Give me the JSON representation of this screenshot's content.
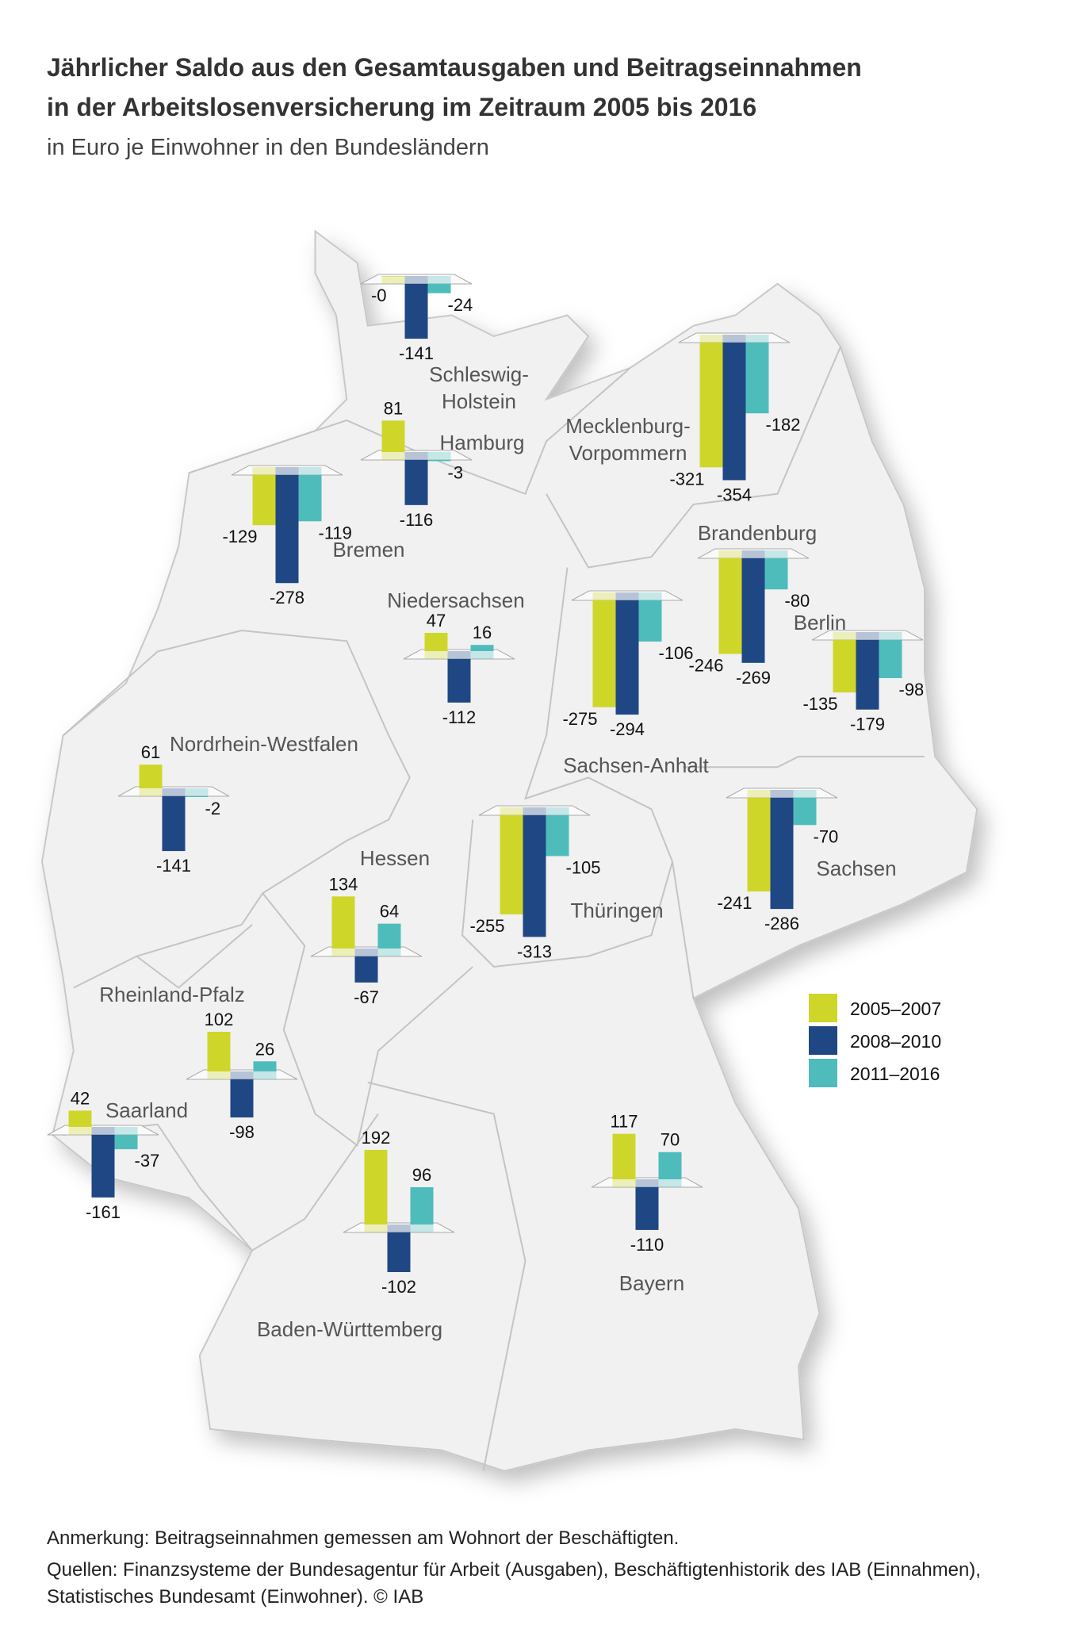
{
  "title_line1": "Jährlicher Saldo aus den Gesamtausgaben und Beitragseinnahmen",
  "title_line2": "in der Arbeitslosenversicherung im Zeitraum 2005 bis 2016",
  "subtitle": "in Euro je Einwohner in den Bundesländern",
  "footer": {
    "note": "Anmerkung: Beitragseinnahmen gemessen am Wohnort der Beschäftigten.",
    "sources_line1": "Quellen: Finanzsysteme der Bundesagentur für Arbeit (Ausgaben), Beschäftigtenhistorik des IAB (Einnahmen),",
    "sources_line2": "Statistisches Bundesamt (Einwohner).  © IAB"
  },
  "chart_data": {
    "type": "bar",
    "title": "Jährlicher Saldo aus den Gesamtausgaben und Beitragseinnahmen in der Arbeitslosenversicherung im Zeitraum 2005 bis 2016",
    "ylabel": "in Euro je Einwohner",
    "legend_position": "right",
    "series": [
      {
        "name": "2005–2007",
        "color": "#cfd62a"
      },
      {
        "name": "2008–2010",
        "color": "#1f4784"
      },
      {
        "name": "2011–2016",
        "color": "#4fbcbc"
      }
    ],
    "states": [
      {
        "name": [
          "Schleswig-",
          "Holstein"
        ],
        "values": [
          0,
          -141,
          -24
        ],
        "labels": [
          "-0",
          "-141",
          "-24"
        ]
      },
      {
        "name": [
          "Hamburg"
        ],
        "values": [
          81,
          -116,
          -3
        ],
        "labels": [
          "81",
          "-116",
          "-3"
        ]
      },
      {
        "name": [
          "Bremen"
        ],
        "values": [
          -129,
          -278,
          -119
        ],
        "labels": [
          "-129",
          "-278",
          "-119"
        ]
      },
      {
        "name": [
          "Niedersachsen"
        ],
        "values": [
          47,
          -112,
          16
        ],
        "labels": [
          "47",
          "-112",
          "16"
        ]
      },
      {
        "name": [
          "Mecklenburg-",
          "Vorpommern"
        ],
        "values": [
          -321,
          -354,
          -182
        ],
        "labels": [
          "-321",
          "-354",
          "-182"
        ]
      },
      {
        "name": [
          "Brandenburg"
        ],
        "values": [
          -246,
          -269,
          -80
        ],
        "labels": [
          "-246",
          "-269",
          "-80"
        ]
      },
      {
        "name": [
          "Berlin"
        ],
        "values": [
          -135,
          -179,
          -98
        ],
        "labels": [
          "-135",
          "-179",
          "-98"
        ]
      },
      {
        "name": [
          "Sachsen-Anhalt"
        ],
        "values": [
          -275,
          -294,
          -106
        ],
        "labels": [
          "-275",
          "-294",
          "-106"
        ]
      },
      {
        "name": [
          "Nordrhein-Westfalen"
        ],
        "values": [
          61,
          -141,
          -2
        ],
        "labels": [
          "61",
          "-141",
          "-2"
        ]
      },
      {
        "name": [
          "Hessen"
        ],
        "values": [
          134,
          -67,
          64
        ],
        "labels": [
          "134",
          "-67",
          "64"
        ]
      },
      {
        "name": [
          "Thüringen"
        ],
        "values": [
          -255,
          -313,
          -105
        ],
        "labels": [
          "-255",
          "-313",
          "-105"
        ]
      },
      {
        "name": [
          "Sachsen"
        ],
        "values": [
          -241,
          -286,
          -70
        ],
        "labels": [
          "-241",
          "-286",
          "-70"
        ]
      },
      {
        "name": [
          "Rheinland-Pfalz"
        ],
        "values": [
          102,
          -98,
          26
        ],
        "labels": [
          "102",
          "-98",
          "26"
        ]
      },
      {
        "name": [
          "Saarland"
        ],
        "values": [
          42,
          -161,
          -37
        ],
        "labels": [
          "42",
          "-161",
          "-37"
        ]
      },
      {
        "name": [
          "Baden-Württemberg"
        ],
        "values": [
          192,
          -102,
          96
        ],
        "labels": [
          "192",
          "-102",
          "96"
        ]
      },
      {
        "name": [
          "Bayern"
        ],
        "values": [
          117,
          -110,
          70
        ],
        "labels": [
          "117",
          "-110",
          "70"
        ]
      }
    ]
  }
}
